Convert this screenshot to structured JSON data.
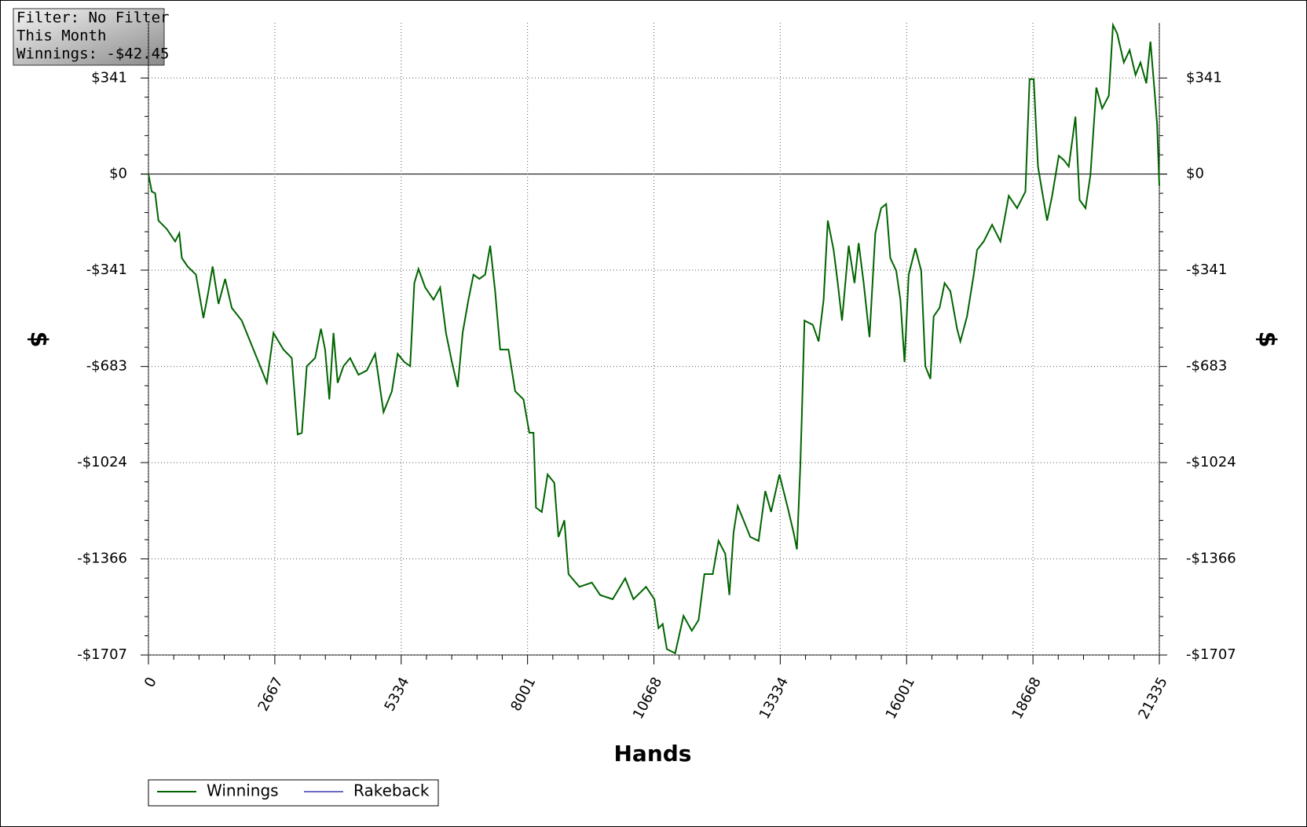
{
  "chart_data": {
    "type": "line",
    "info": [
      "Filter: No Filter",
      "This Month",
      "Winnings: -$42.45"
    ],
    "xlabel": "Hands",
    "ylabel": "$",
    "xlim": [
      0,
      21335
    ],
    "xticks": [
      0,
      2667,
      5334,
      8001,
      10668,
      13334,
      16001,
      18668,
      21335
    ],
    "ylim": [
      -1707,
      537
    ],
    "yticks": [
      {
        "value": 341,
        "label": "$341"
      },
      {
        "value": 0,
        "label": "$0"
      },
      {
        "value": -341,
        "label": "-$341"
      },
      {
        "value": -683,
        "label": "-$683"
      },
      {
        "value": -1024,
        "label": "-$1024"
      },
      {
        "value": -1366,
        "label": "-$1366"
      },
      {
        "value": -1707,
        "label": "-$1707"
      }
    ],
    "grid": true,
    "x": [
      0,
      70,
      141,
      211,
      387,
      563,
      651,
      704,
      827,
      1003,
      1161,
      1267,
      1355,
      1478,
      1618,
      1759,
      1970,
      2146,
      2322,
      2498,
      2639,
      2850,
      3026,
      3149,
      3237,
      3342,
      3518,
      3641,
      3729,
      3817,
      3905,
      3993,
      4116,
      4257,
      4433,
      4609,
      4785,
      4961,
      5137,
      5260,
      5400,
      5523,
      5611,
      5699,
      5840,
      6016,
      6156,
      6279,
      6403,
      6526,
      6631,
      6754,
      6860,
      6983,
      7106,
      7212,
      7317,
      7423,
      7599,
      7740,
      7915,
      8038,
      8126,
      8179,
      8302,
      8425,
      8566,
      8654,
      8777,
      8865,
      9094,
      9358,
      9534,
      9798,
      10062,
      10237,
      10501,
      10677,
      10765,
      10853,
      10941,
      11117,
      11293,
      11469,
      11610,
      11733,
      11909,
      12032,
      12173,
      12261,
      12349,
      12437,
      12560,
      12701,
      12877,
      13018,
      13141,
      13317,
      13493,
      13616,
      13686,
      13757,
      13792,
      13845,
      14021,
      14144,
      14250,
      14338,
      14461,
      14549,
      14637,
      14778,
      14901,
      14989,
      15095,
      15218,
      15341,
      15464,
      15570,
      15658,
      15781,
      15869,
      15957,
      16045,
      16186,
      16309,
      16397,
      16503,
      16573,
      16696,
      16802,
      16925,
      17066,
      17136,
      17277,
      17418,
      17489,
      17629,
      17805,
      17981,
      18157,
      18333,
      18509,
      18597,
      18685,
      18773,
      18861,
      18966,
      19072,
      19213,
      19318,
      19424,
      19565,
      19653,
      19776,
      19881,
      20005,
      20128,
      20269,
      20357,
      20445,
      20585,
      20708,
      20832,
      20937,
      21060,
      21148,
      21236,
      21289,
      21335
    ],
    "series": [
      {
        "name": "Winnings",
        "color": "#006400",
        "values": [
          0,
          -62,
          -68,
          -165,
          -195,
          -239,
          -210,
          -298,
          -328,
          -357,
          -511,
          -416,
          -328,
          -461,
          -372,
          -475,
          -520,
          -594,
          -667,
          -741,
          -564,
          -623,
          -653,
          -924,
          -919,
          -682,
          -653,
          -549,
          -623,
          -800,
          -564,
          -741,
          -682,
          -653,
          -712,
          -697,
          -638,
          -845,
          -771,
          -638,
          -667,
          -682,
          -387,
          -337,
          -402,
          -446,
          -402,
          -564,
          -667,
          -756,
          -564,
          -446,
          -357,
          -372,
          -357,
          -254,
          -416,
          -623,
          -623,
          -771,
          -800,
          -918,
          -918,
          -1184,
          -1199,
          -1066,
          -1096,
          -1288,
          -1229,
          -1420,
          -1465,
          -1450,
          -1494,
          -1509,
          -1435,
          -1509,
          -1465,
          -1509,
          -1612,
          -1597,
          -1686,
          -1701,
          -1568,
          -1621,
          -1583,
          -1420,
          -1420,
          -1302,
          -1347,
          -1494,
          -1273,
          -1178,
          -1229,
          -1288,
          -1302,
          -1125,
          -1199,
          -1066,
          -1184,
          -1273,
          -1332,
          -1037,
          -845,
          -520,
          -535,
          -594,
          -446,
          -165,
          -269,
          -387,
          -520,
          -254,
          -387,
          -245,
          -387,
          -579,
          -210,
          -121,
          -106,
          -298,
          -343,
          -446,
          -667,
          -357,
          -263,
          -343,
          -682,
          -727,
          -505,
          -475,
          -387,
          -416,
          -549,
          -594,
          -505,
          -357,
          -269,
          -239,
          -180,
          -239,
          -77,
          -121,
          -62,
          337,
          337,
          27,
          -62,
          -165,
          -77,
          65,
          50,
          27,
          204,
          -92,
          -121,
          -3,
          307,
          233,
          278,
          529,
          499,
          396,
          440,
          352,
          396,
          322,
          470,
          292,
          174,
          -42
        ]
      },
      {
        "name": "Rakeback",
        "color": "#6a6ac8"
      }
    ]
  }
}
